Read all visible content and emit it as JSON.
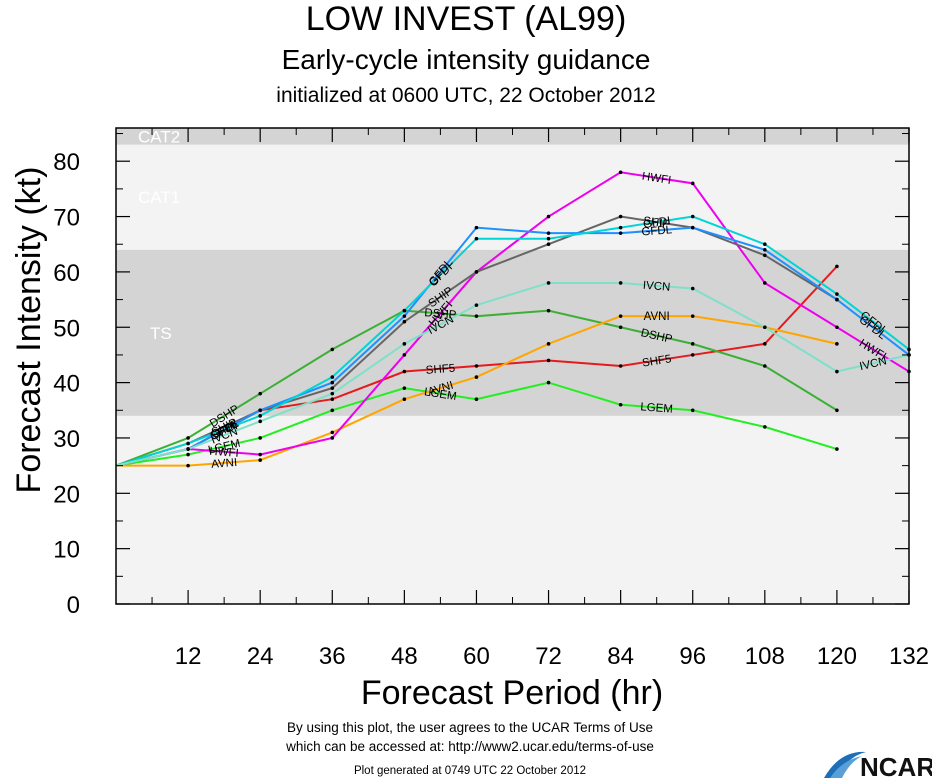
{
  "titles": {
    "main": "LOW INVEST (AL99)",
    "sub": "Early-cycle intensity guidance",
    "init": "initialized at 0600 UTC, 22 October 2012"
  },
  "footer": {
    "line1": "By using this plot, the user agrees to the UCAR Terms of Use",
    "line2": "which can be accessed at: http://www2.ucar.edu/terms-of-use",
    "generated": "Plot generated at 0749 UTC   22 October 2012",
    "logo_text": "NCAR"
  },
  "chart_data": {
    "type": "line",
    "title": "LOW INVEST (AL99)",
    "subtitle": "Early-cycle intensity guidance",
    "xlabel": "Forecast Period (hr)",
    "ylabel": "Forecast Intensity (kt)",
    "xlim": [
      0,
      132
    ],
    "ylim": [
      0,
      86
    ],
    "xticks": [
      12,
      24,
      36,
      48,
      60,
      72,
      84,
      96,
      108,
      120,
      132
    ],
    "yticks": [
      0,
      10,
      20,
      30,
      40,
      50,
      60,
      70,
      80
    ],
    "bands": [
      {
        "label": "TS",
        "from": 34,
        "to": 64,
        "color": "#d4d4d4"
      },
      {
        "label": "CAT1",
        "from": 64,
        "to": 83,
        "color": "#f3f3f3"
      },
      {
        "label": "CAT2",
        "from": 83,
        "to": 96,
        "color": "#d4d4d4"
      }
    ],
    "series": [
      {
        "name": "SHF5",
        "color": "#e41a1c",
        "x": [
          0,
          12,
          24,
          36,
          48,
          60,
          72,
          84,
          96,
          108,
          120
        ],
        "y": [
          25,
          28,
          35,
          37,
          42,
          43,
          44,
          43,
          45,
          47,
          61
        ]
      },
      {
        "name": "DSHP",
        "color": "#3cb034",
        "x": [
          0,
          12,
          24,
          36,
          48,
          60,
          72,
          84,
          96,
          108,
          120
        ],
        "y": [
          25,
          30,
          38,
          46,
          53,
          52,
          53,
          50,
          47,
          43,
          35
        ]
      },
      {
        "name": "LGEM",
        "color": "#22ee22",
        "x": [
          0,
          12,
          24,
          36,
          48,
          60,
          72,
          84,
          96,
          108,
          120
        ],
        "y": [
          25,
          27,
          30,
          35,
          39,
          37,
          40,
          36,
          35,
          32,
          28
        ]
      },
      {
        "name": "AVNI",
        "color": "#ffa500",
        "x": [
          0,
          12,
          24,
          36,
          48,
          60,
          72,
          84,
          96,
          108,
          120
        ],
        "y": [
          25,
          25,
          26,
          31,
          37,
          41,
          47,
          52,
          52,
          50,
          47
        ]
      },
      {
        "name": "HWFI",
        "color": "#ee00ee",
        "x": [
          0,
          12,
          24,
          36,
          48,
          60,
          72,
          84,
          96,
          108,
          120,
          132
        ],
        "y": [
          25,
          28,
          27,
          30,
          45,
          60,
          70,
          78,
          76,
          58,
          50,
          42
        ]
      },
      {
        "name": "SHIP",
        "color": "#666666",
        "x": [
          0,
          12,
          24,
          36,
          48,
          60,
          72,
          84,
          96,
          108,
          120
        ],
        "y": [
          25,
          29,
          35,
          39,
          51,
          60,
          65,
          70,
          68,
          63,
          55
        ]
      },
      {
        "name": "GFDL",
        "color": "#1e90ff",
        "x": [
          0,
          12,
          24,
          36,
          48,
          60,
          72,
          84,
          96,
          108,
          120,
          132
        ],
        "y": [
          25,
          28,
          35,
          40,
          52,
          68,
          67,
          67,
          68,
          64,
          55,
          45
        ]
      },
      {
        "name": "GFDI",
        "color": "#00d5d5",
        "x": [
          0,
          12,
          24,
          36,
          48,
          60,
          72,
          84,
          96,
          108,
          120,
          132
        ],
        "y": [
          25,
          29,
          34,
          41,
          53,
          66,
          66,
          68,
          70,
          65,
          56,
          46
        ]
      },
      {
        "name": "IVCN",
        "color": "#7fe0c8",
        "x": [
          0,
          12,
          24,
          36,
          48,
          60,
          72,
          84,
          96,
          108,
          120,
          132
        ],
        "y": [
          25,
          28,
          33,
          38,
          47,
          54,
          58,
          58,
          57,
          50,
          42,
          45
        ]
      }
    ]
  },
  "colors": {
    "plot_background": "#f3f3f3",
    "band_shade": "#d4d4d4",
    "band_label": "#ffffff"
  }
}
